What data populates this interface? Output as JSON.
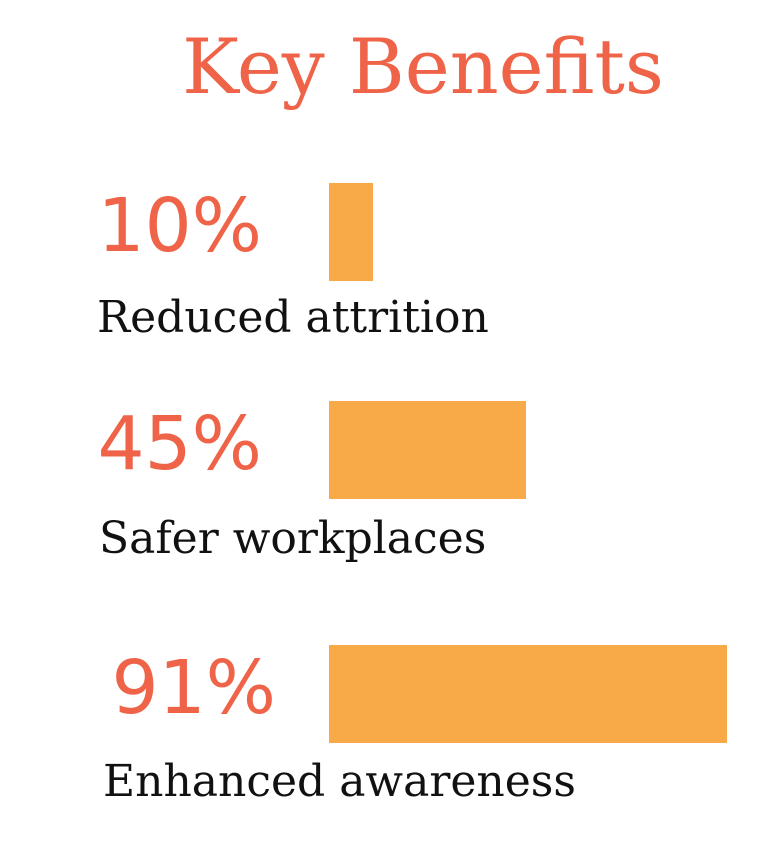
{
  "chart_data": {
    "type": "bar",
    "title": "Key Benefits",
    "categories": [
      "Reduced attrition",
      "Safer workplaces",
      "Enhanced awareness"
    ],
    "values": [
      10,
      45,
      91
    ],
    "value_labels": [
      "10%",
      "45%",
      "91%"
    ],
    "xlim": [
      0,
      100
    ],
    "orientation": "horizontal",
    "grid": false,
    "legend": "none"
  },
  "colors": {
    "title": "#ef6448",
    "value_text": "#ef6448",
    "bar": "#f8aa48",
    "label_text": "#111111"
  }
}
